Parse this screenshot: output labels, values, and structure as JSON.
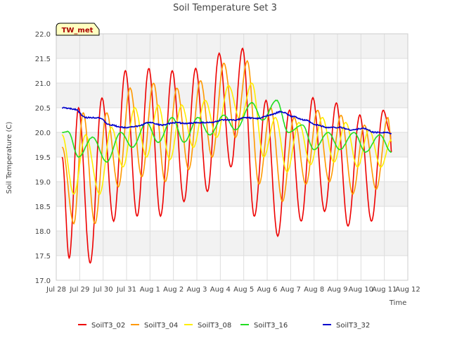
{
  "chart_data": {
    "type": "line",
    "title": "Soil Temperature Set 3",
    "xlabel": "Time",
    "ylabel": "Soil Temperature (C)",
    "site_label": "TW_met",
    "xlim": [
      0,
      15
    ],
    "ylim": [
      17.0,
      22.0
    ],
    "x_ticks": [
      0,
      1,
      2,
      3,
      4,
      5,
      6,
      7,
      8,
      9,
      10,
      11,
      12,
      13,
      14,
      15
    ],
    "x_tick_labels": [
      "Jul 28",
      "Jul 29",
      "Jul 30",
      "Jul 31",
      "Aug 1",
      "Aug 2",
      "Aug 3",
      "Aug 4",
      "Aug 5",
      "Aug 6",
      "Aug 7",
      "Aug 8",
      "Aug 9",
      "Aug 10",
      "Aug 11",
      "Aug 12"
    ],
    "y_ticks": [
      17.0,
      17.5,
      18.0,
      18.5,
      19.0,
      19.5,
      20.0,
      20.5,
      21.0,
      21.5,
      22.0
    ],
    "y_tick_labels": [
      "17.0",
      "17.5",
      "18.0",
      "18.5",
      "19.0",
      "19.5",
      "20.0",
      "20.5",
      "21.0",
      "21.5",
      "22.0"
    ],
    "grid": true,
    "legend_position": "bottom",
    "series": [
      {
        "name": "SoilT3_02",
        "color": "#ee0000",
        "x": [
          0.25,
          0.55,
          0.95,
          1.45,
          1.95,
          2.45,
          2.95,
          3.45,
          3.95,
          4.45,
          4.95,
          5.45,
          5.95,
          6.45,
          6.95,
          7.45,
          7.95,
          8.45,
          8.95,
          9.45,
          9.95,
          10.45,
          10.95,
          11.45,
          11.95,
          12.45,
          12.95,
          13.45,
          13.95,
          14.25,
          14.3
        ],
        "y": [
          19.5,
          17.45,
          20.5,
          17.35,
          20.7,
          18.2,
          21.25,
          18.3,
          21.3,
          18.3,
          21.25,
          18.6,
          21.3,
          18.8,
          21.6,
          19.3,
          21.7,
          18.3,
          20.65,
          17.9,
          20.45,
          18.2,
          20.7,
          18.4,
          20.6,
          18.1,
          20.35,
          18.2,
          20.45,
          20.0,
          19.6
        ]
      },
      {
        "name": "SoilT3_04",
        "color": "#ff9900",
        "x": [
          0.25,
          0.75,
          1.15,
          1.65,
          2.15,
          2.65,
          3.15,
          3.65,
          4.15,
          4.65,
          5.15,
          5.65,
          6.15,
          6.65,
          7.15,
          7.65,
          8.15,
          8.65,
          9.15,
          9.65,
          10.15,
          10.65,
          11.15,
          11.65,
          12.15,
          12.65,
          13.15,
          13.65,
          14.15,
          14.3
        ],
        "y": [
          19.7,
          18.15,
          20.4,
          18.15,
          20.4,
          18.9,
          20.9,
          19.1,
          21.0,
          19.0,
          20.9,
          19.25,
          21.05,
          19.5,
          21.4,
          19.9,
          21.45,
          18.95,
          20.5,
          18.6,
          20.3,
          18.95,
          20.45,
          19.0,
          20.35,
          18.75,
          20.15,
          18.85,
          20.3,
          19.8
        ]
      },
      {
        "name": "SoilT3_08",
        "color": "#ffee00",
        "x": [
          0.25,
          0.75,
          1.25,
          1.85,
          2.35,
          2.85,
          3.35,
          3.85,
          4.35,
          4.85,
          5.35,
          5.85,
          6.35,
          6.85,
          7.35,
          7.85,
          8.35,
          8.85,
          9.35,
          9.85,
          10.35,
          10.85,
          11.35,
          11.85,
          12.35,
          12.85,
          13.35,
          13.85,
          14.3
        ],
        "y": [
          19.95,
          18.75,
          19.95,
          18.75,
          20.1,
          19.3,
          20.5,
          19.5,
          20.55,
          19.45,
          20.55,
          19.7,
          20.65,
          19.9,
          20.95,
          20.25,
          21.0,
          19.5,
          20.3,
          19.2,
          20.2,
          19.35,
          20.3,
          19.4,
          20.2,
          19.3,
          20.05,
          19.3,
          19.85
        ]
      },
      {
        "name": "SoilT3_16",
        "color": "#22dd22",
        "x": [
          0.25,
          0.5,
          0.95,
          1.55,
          2.15,
          2.75,
          3.25,
          3.85,
          4.35,
          4.95,
          5.45,
          6.05,
          6.55,
          7.15,
          7.65,
          8.35,
          8.8,
          9.4,
          9.9,
          10.5,
          11.0,
          11.6,
          12.1,
          12.7,
          13.2,
          13.8,
          14.3
        ],
        "y": [
          20.0,
          20.02,
          19.5,
          19.9,
          19.4,
          20.0,
          19.7,
          20.2,
          19.8,
          20.3,
          19.8,
          20.3,
          19.95,
          20.35,
          20.05,
          20.6,
          20.25,
          20.65,
          20.0,
          20.15,
          19.65,
          20.0,
          19.65,
          20.0,
          19.6,
          19.95,
          19.6
        ]
      },
      {
        "name": "SoilT3_32",
        "color": "#0000cc",
        "x": [
          0.25,
          0.8,
          1.25,
          1.8,
          2.3,
          2.9,
          3.4,
          4.0,
          4.5,
          5.1,
          5.6,
          6.1,
          6.6,
          7.1,
          7.6,
          8.1,
          8.6,
          9.1,
          9.6,
          10.1,
          10.6,
          11.1,
          11.6,
          12.1,
          12.6,
          13.1,
          13.6,
          14.1,
          14.3
        ],
        "y": [
          20.5,
          20.47,
          20.3,
          20.3,
          20.15,
          20.1,
          20.12,
          20.2,
          20.15,
          20.2,
          20.18,
          20.2,
          20.2,
          20.25,
          20.25,
          20.3,
          20.28,
          20.35,
          20.42,
          20.32,
          20.25,
          20.15,
          20.1,
          20.1,
          20.05,
          20.08,
          20.0,
          20.0,
          19.97
        ]
      }
    ]
  }
}
